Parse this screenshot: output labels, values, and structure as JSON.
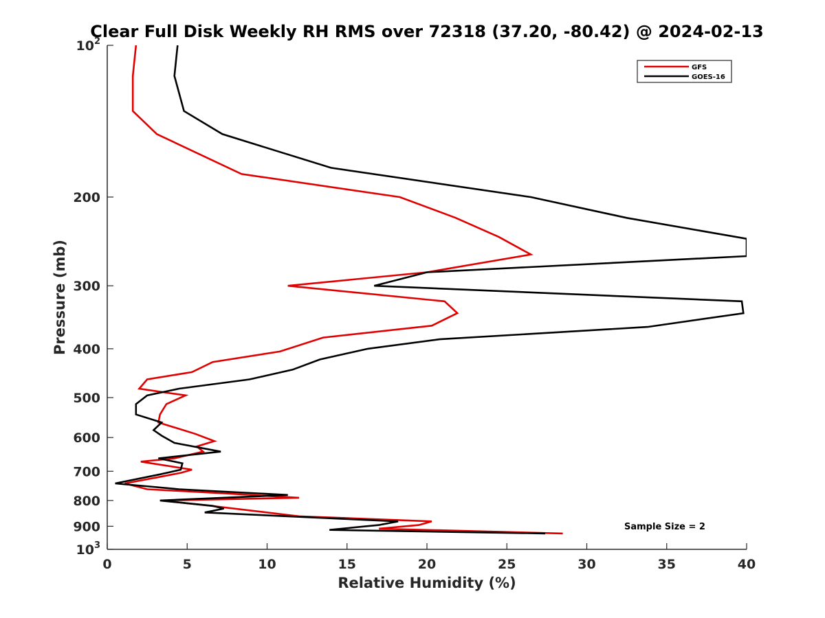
{
  "chart_data": {
    "type": "line",
    "title": "Clear Full Disk Weekly RH RMS over 72318 (37.20, -80.42) @ 2024-02-13",
    "xlabel": "Relative Humidity (%)",
    "ylabel": "Pressure (mb)",
    "xlim": [
      0,
      40
    ],
    "ylim": [
      100,
      1000
    ],
    "y_scale": "log",
    "y_reversed": true,
    "x_ticks": [
      "0",
      "5",
      "10",
      "15",
      "20",
      "25",
      "30",
      "35",
      "40"
    ],
    "y_ticks": [
      {
        "value": 100,
        "label": "10",
        "sup": "2"
      },
      {
        "value": 200,
        "label": "200"
      },
      {
        "value": 300,
        "label": "300"
      },
      {
        "value": 400,
        "label": "400"
      },
      {
        "value": 500,
        "label": "500"
      },
      {
        "value": 600,
        "label": "600"
      },
      {
        "value": 700,
        "label": "700"
      },
      {
        "value": 800,
        "label": "800"
      },
      {
        "value": 900,
        "label": "900"
      },
      {
        "value": 1000,
        "label": "10",
        "sup": "3"
      }
    ],
    "grid": false,
    "legend_position": "top-right",
    "annotation": "Sample Size = 2",
    "series": [
      {
        "name": "GFS",
        "color": "#e00000",
        "points": [
          [
            1.8,
            100
          ],
          [
            1.6,
            115
          ],
          [
            1.6,
            135
          ],
          [
            3.1,
            150
          ],
          [
            8.4,
            180
          ],
          [
            18.3,
            200
          ],
          [
            21.8,
            220
          ],
          [
            24.5,
            240
          ],
          [
            26.5,
            260
          ],
          [
            20.0,
            282
          ],
          [
            11.3,
            300
          ],
          [
            21.1,
            322
          ],
          [
            21.9,
            340
          ],
          [
            20.3,
            360
          ],
          [
            13.5,
            380
          ],
          [
            10.8,
            405
          ],
          [
            6.6,
            425
          ],
          [
            5.3,
            445
          ],
          [
            2.5,
            460
          ],
          [
            2.0,
            480
          ],
          [
            4.9,
            495
          ],
          [
            3.7,
            515
          ],
          [
            3.3,
            540
          ],
          [
            3.2,
            560
          ],
          [
            5.5,
            590
          ],
          [
            6.7,
            610
          ],
          [
            5.6,
            625
          ],
          [
            6.0,
            640
          ],
          [
            4.2,
            660
          ],
          [
            2.1,
            670
          ],
          [
            5.3,
            695
          ],
          [
            4.6,
            705
          ],
          [
            3.1,
            720
          ],
          [
            1.1,
            740
          ],
          [
            2.5,
            760
          ],
          [
            7.5,
            775
          ],
          [
            12.0,
            790
          ],
          [
            3.4,
            800
          ],
          [
            6.5,
            820
          ],
          [
            12.0,
            860
          ],
          [
            20.3,
            880
          ],
          [
            19.5,
            895
          ],
          [
            17.0,
            910
          ],
          [
            28.5,
            930
          ]
        ]
      },
      {
        "name": "GOES-16",
        "color": "#000000",
        "points": [
          [
            4.4,
            100
          ],
          [
            4.2,
            115
          ],
          [
            4.8,
            135
          ],
          [
            7.2,
            150
          ],
          [
            14.0,
            175
          ],
          [
            26.5,
            200
          ],
          [
            32.5,
            220
          ],
          [
            40.0,
            242
          ],
          [
            40.0,
            262
          ],
          [
            20.0,
            282
          ],
          [
            16.7,
            300
          ],
          [
            39.7,
            322
          ],
          [
            39.8,
            340
          ],
          [
            33.8,
            362
          ],
          [
            20.8,
            383
          ],
          [
            16.3,
            400
          ],
          [
            13.3,
            420
          ],
          [
            11.6,
            440
          ],
          [
            8.9,
            460
          ],
          [
            4.5,
            480
          ],
          [
            2.5,
            495
          ],
          [
            1.8,
            515
          ],
          [
            1.8,
            540
          ],
          [
            3.4,
            560
          ],
          [
            2.9,
            580
          ],
          [
            3.4,
            595
          ],
          [
            4.2,
            615
          ],
          [
            7.1,
            640
          ],
          [
            3.2,
            660
          ],
          [
            4.7,
            675
          ],
          [
            4.6,
            695
          ],
          [
            3.3,
            710
          ],
          [
            0.5,
            740
          ],
          [
            4.5,
            760
          ],
          [
            11.3,
            780
          ],
          [
            3.3,
            800
          ],
          [
            6.6,
            820
          ],
          [
            7.3,
            830
          ],
          [
            6.1,
            845
          ],
          [
            18.2,
            880
          ],
          [
            17.0,
            895
          ],
          [
            13.9,
            915
          ],
          [
            27.4,
            930
          ]
        ]
      }
    ]
  }
}
